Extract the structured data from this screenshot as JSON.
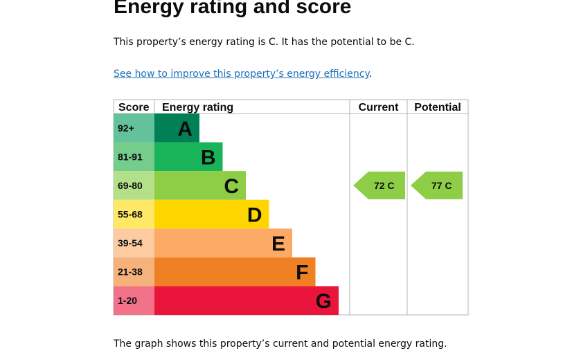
{
  "heading": "Energy rating and score",
  "intro": "This property’s energy rating is C. It has the potential to be C.",
  "improve_link": "See how to improve this property’s energy efficiency",
  "improve_link_suffix": ".",
  "footer_text": "The graph shows this property’s current and potential energy rating.",
  "chart_data": {
    "type": "table",
    "headers": {
      "score": "Score",
      "rating": "Energy rating",
      "current": "Current",
      "potential": "Potential"
    },
    "bands": [
      {
        "range": "92+",
        "letter": "A",
        "color": "#008054",
        "score_color": "#63c29c",
        "length": 1
      },
      {
        "range": "81-91",
        "letter": "B",
        "color": "#19b459",
        "score_color": "#75cd8b",
        "length": 2
      },
      {
        "range": "69-80",
        "letter": "C",
        "color": "#8dce46",
        "score_color": "#b5e08a",
        "length": 3
      },
      {
        "range": "55-68",
        "letter": "D",
        "color": "#ffd500",
        "score_color": "#ffe866",
        "length": 4
      },
      {
        "range": "39-54",
        "letter": "E",
        "color": "#fcaa65",
        "score_color": "#fdcba2",
        "length": 5
      },
      {
        "range": "21-38",
        "letter": "F",
        "color": "#ef8023",
        "score_color": "#f5b27b",
        "length": 6
      },
      {
        "range": "1-20",
        "letter": "G",
        "color": "#e9153b",
        "score_color": "#f27389",
        "length": 7
      }
    ],
    "current": {
      "score": 72,
      "letter": "C",
      "label": "72  C",
      "color": "#8dce46"
    },
    "potential": {
      "score": 77,
      "letter": "C",
      "label": "77  C",
      "color": "#8dce46"
    }
  }
}
